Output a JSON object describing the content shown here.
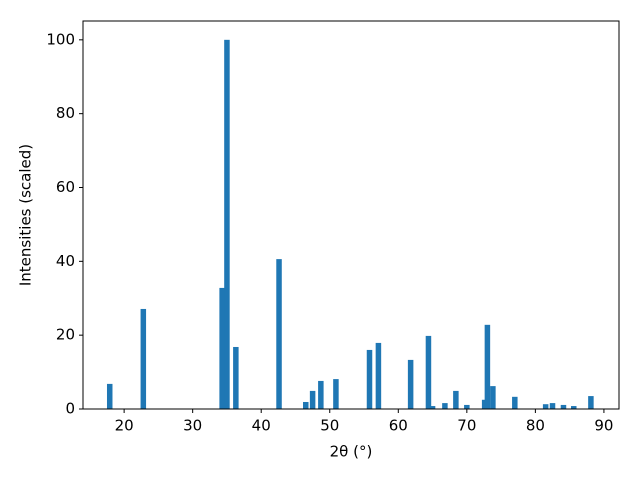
{
  "chart_data": {
    "type": "bar",
    "xlabel": "2θ (°)",
    "ylabel": "Intensities (scaled)",
    "x": [
      17.9,
      22.8,
      34.3,
      35.0,
      36.3,
      42.6,
      46.5,
      47.5,
      48.7,
      50.9,
      55.8,
      57.1,
      61.8,
      64.4,
      65.0,
      66.8,
      68.4,
      70.0,
      72.6,
      73.0,
      73.8,
      77.0,
      81.5,
      82.5,
      84.1,
      85.6,
      88.1
    ],
    "values": [
      6.8,
      27.1,
      32.8,
      100,
      16.8,
      40.6,
      1.9,
      4.9,
      7.6,
      8.1,
      16.0,
      17.9,
      13.3,
      19.8,
      0.8,
      1.6,
      4.9,
      1.1,
      2.5,
      22.8,
      6.2,
      3.3,
      1.3,
      1.6,
      1.1,
      0.8,
      3.5
    ],
    "color": "#1f77b4",
    "xlim": [
      14.0,
      92.2
    ],
    "xticks": [
      20,
      30,
      40,
      50,
      60,
      70,
      80,
      90
    ],
    "ylim": [
      0,
      105.1
    ],
    "yticks": [
      0,
      20,
      40,
      60,
      80,
      100
    ]
  }
}
